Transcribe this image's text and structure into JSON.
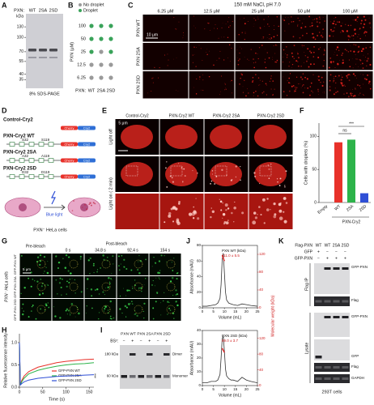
{
  "A": {
    "letter": "A",
    "lane_title": "PXN:",
    "lanes": [
      "WT",
      "2SA",
      "2SD"
    ],
    "unit": "kDa",
    "markers": [
      130,
      100,
      70,
      55,
      40,
      35
    ],
    "caption": "8% SDS-PAGE"
  },
  "B": {
    "letter": "B",
    "legend": [
      "No droplet",
      "Droplet"
    ],
    "colors": [
      "#9a9a9a",
      "#3aa35a"
    ],
    "ylabel": "PXN (μM)",
    "lane_title": "PXN:",
    "lanes": [
      "WT",
      "2SA",
      "2SD"
    ],
    "concentrations": [
      100,
      50,
      25,
      12.5,
      6.25
    ],
    "droplet": [
      [
        1,
        1,
        1
      ],
      [
        1,
        1,
        1
      ],
      [
        1,
        0,
        1
      ],
      [
        0,
        0,
        0
      ],
      [
        0,
        0,
        0
      ]
    ]
  },
  "C": {
    "letter": "C",
    "title": "150 mM NaCl, pH 7.0",
    "columns": [
      "6.25 μM",
      "12.5 μM",
      "25 μM",
      "50 μM",
      "100 μM"
    ],
    "rows": [
      "PXN WT",
      "PXN 2SA",
      "PXN 2SD"
    ],
    "scale_bar": "10 μm"
  },
  "D": {
    "letter": "D",
    "constructs": [
      "Control-Cry2",
      "PXN-Cry2 WT",
      "PXN-Cry2 2SA",
      "PXN-Cry2 2SD"
    ],
    "sites": [
      [
        "S32",
        "S119"
      ],
      [
        "A32",
        "A119"
      ],
      [
        "D32",
        "D119"
      ]
    ],
    "tags": [
      "Cherry",
      "Cry2"
    ],
    "light": "Blue light",
    "cells": "PXN⁻ HeLa cells"
  },
  "E": {
    "letter": "E",
    "columns": [
      "Control-Cry2",
      "PXN-Cry2 WT",
      "PXN-Cry2 2SA",
      "PXN-Cry2 2SD"
    ],
    "rows": [
      "Light off",
      "Light on ( 2 min)"
    ],
    "scale_bar": "5 μm"
  },
  "F": {
    "letter": "F",
    "ylabel": "Cells with droplets (%)",
    "categories": [
      "Empty",
      "WT",
      "2SA",
      "2SD"
    ],
    "group": "PXN-Cry2",
    "values": [
      0,
      91,
      95,
      14
    ],
    "colors": [
      "#888888",
      "#e8312a",
      "#2db34a",
      "#2f4fd6"
    ],
    "ylim": [
      0,
      120
    ],
    "yticks": [
      0,
      50,
      100
    ],
    "annotations": [
      "ns",
      "***"
    ]
  },
  "G": {
    "letter": "G",
    "pre": "Pre-bleach",
    "post": "Post-bleach",
    "times": [
      "0 s",
      "34.8 s",
      "92.4 s",
      "154 s"
    ],
    "rows": [
      "GFP-PXN WT",
      "GFP-PXN 2SA",
      "GFP-PXN 2SD"
    ],
    "cells": "PXN⁻ HeLa cells",
    "scale_bar": "5 μm"
  },
  "H": {
    "letter": "H",
    "type": "line",
    "ylabel": "Relative fluorescence intensity",
    "xlabel": "Time (s)",
    "x": [
      0,
      2,
      5,
      10,
      20,
      40,
      60,
      80,
      100,
      120,
      140,
      160
    ],
    "series": [
      {
        "name": "GFP-PXN WT",
        "color": "#e8312a",
        "values": [
          1.0,
          0.05,
          0.15,
          0.25,
          0.35,
          0.45,
          0.5,
          0.55,
          0.58,
          0.6,
          0.62,
          0.63
        ]
      },
      {
        "name": "GFP-PXN 2SA",
        "color": "#2db34a",
        "values": [
          1.0,
          0.05,
          0.12,
          0.2,
          0.3,
          0.38,
          0.43,
          0.47,
          0.5,
          0.52,
          0.53,
          0.55
        ]
      },
      {
        "name": "GFP-PXN 2SD",
        "color": "#2f4fd6",
        "values": [
          1.0,
          0.05,
          0.08,
          0.12,
          0.16,
          0.2,
          0.22,
          0.24,
          0.25,
          0.26,
          0.27,
          0.28
        ]
      }
    ],
    "xlim": [
      0,
      160
    ],
    "xticks": [
      0,
      50,
      100,
      150
    ],
    "ylim": [
      0,
      1.2
    ],
    "yticks": [
      {
        "value": 0,
        "label": "0.0"
      },
      0.5,
      {
        "value": 1,
        "label": "1.0"
      }
    ],
    "annotation": "***"
  },
  "I": {
    "letter": "I",
    "groups": [
      "PXN WT",
      "PXN 2SA",
      "PXN 2SD"
    ],
    "reagent": "BS³:",
    "signs": [
      "−",
      "+"
    ],
    "bands": [
      "Dimer",
      "Monomer"
    ],
    "markers": [
      "180 kDa",
      "60 kDa"
    ]
  },
  "J": {
    "letter": "J",
    "type": "line",
    "ylabel": "Absorbance (mAU)",
    "xlabel": "Volume (mL)",
    "y2label": "Molecular weight (kDa)",
    "xlim": [
      0,
      25
    ],
    "xticks": [
      0,
      5,
      10,
      15,
      20,
      25
    ],
    "y2lim": [
      0,
      140
    ],
    "y2ticks": [
      0,
      40,
      80,
      120
    ],
    "x": [
      0,
      2,
      4,
      6,
      7,
      8,
      8.5,
      9,
      9.5,
      10,
      10.5,
      11,
      12,
      13,
      14,
      16,
      18,
      20,
      22,
      25
    ],
    "plots": [
      {
        "label": "PXN WT (kDa)",
        "mw": "111.0 ± 5.5",
        "ylim": [
          0,
          80
        ],
        "yticks": [
          0,
          20,
          40,
          60,
          80
        ],
        "values": [
          2,
          2,
          3,
          4,
          6,
          12,
          30,
          62,
          70,
          45,
          20,
          10,
          6,
          5,
          4,
          3,
          5,
          4,
          3,
          2
        ],
        "mw_x": [
          9,
          9.25,
          9.5,
          9.75,
          10
        ],
        "mw_values": [
          118,
          114,
          111,
          108,
          105
        ]
      },
      {
        "label": "PXN 2SD (kDa)",
        "mw": "89.0 ± 3.7",
        "ylim": [
          0,
          40
        ],
        "yticks": [
          0,
          10,
          20,
          30,
          40
        ],
        "values": [
          2,
          2,
          3,
          3,
          4,
          8,
          20,
          34,
          36,
          25,
          12,
          7,
          5,
          4,
          4,
          3,
          6,
          4,
          3,
          2
        ],
        "mw_x": [
          9,
          9.25,
          9.5,
          9.75,
          10
        ],
        "mw_values": [
          95,
          92,
          89,
          87,
          84
        ]
      }
    ]
  },
  "K": {
    "letter": "K",
    "rows": [
      {
        "name": "Flag-PXN",
        "signs": [
          "WT",
          "WT",
          "2SA",
          "2SD"
        ]
      },
      {
        "name": "GFP",
        "signs": [
          "+",
          "−",
          "−",
          "−"
        ]
      },
      {
        "name": "GFP-PXN",
        "signs": [
          "−",
          "+",
          "+",
          "+"
        ]
      }
    ],
    "sections": [
      "Flag IP",
      "Lysate"
    ],
    "blots": [
      "GFP-PXN",
      "Flag",
      "GFP-PXN",
      "GFP",
      "Flag",
      "GAPDH"
    ],
    "cells": "293T cells"
  }
}
